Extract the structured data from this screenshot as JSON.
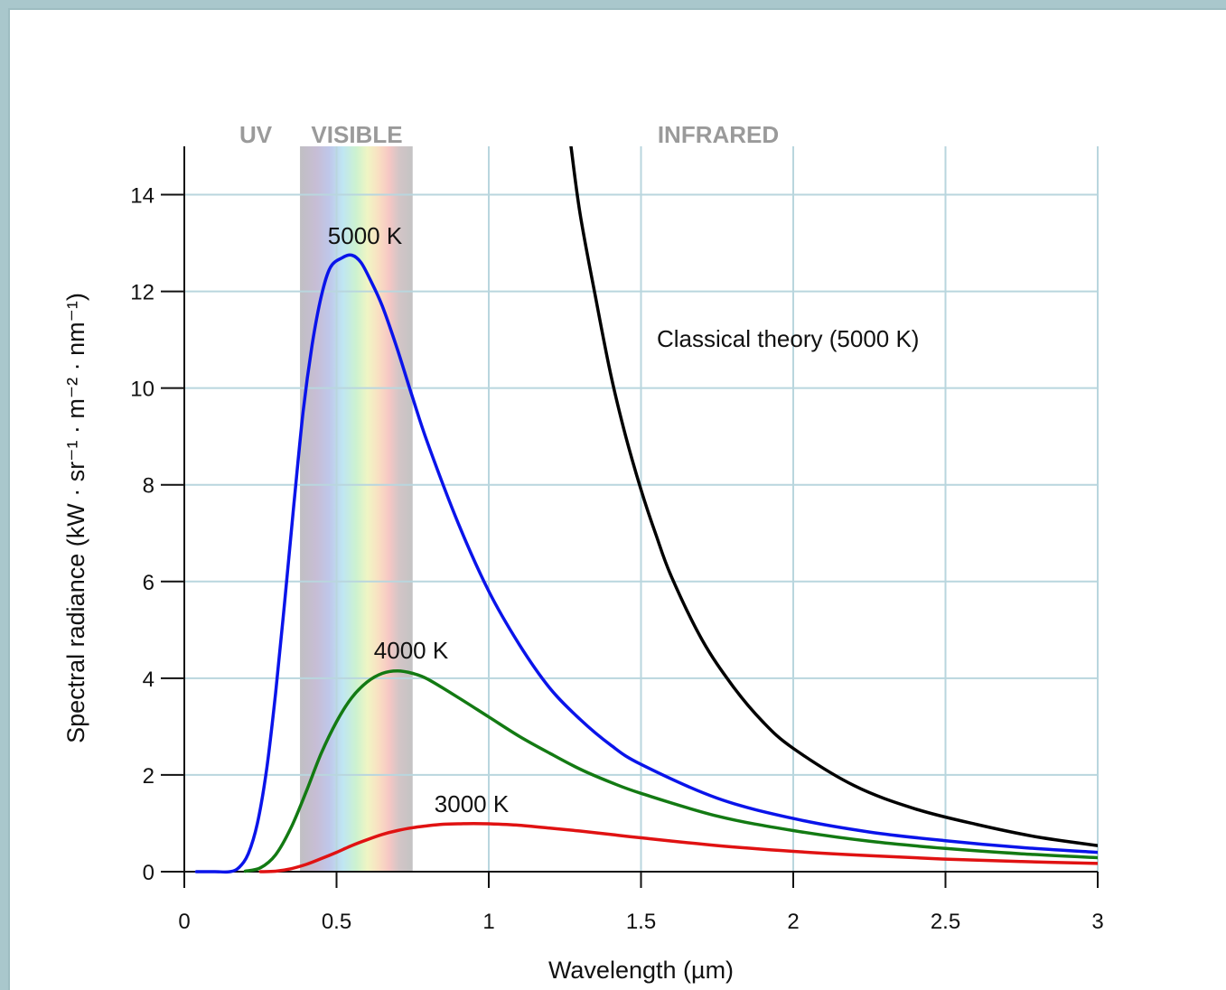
{
  "chart_data": {
    "type": "line",
    "xlabel": "Wavelength (µm)",
    "ylabel": "Spectral radiance (kW · sr⁻¹ · m⁻² · nm⁻¹)",
    "xlim": [
      0,
      3
    ],
    "ylim": [
      0,
      15
    ],
    "x_ticks": [
      "0",
      "0.5",
      "1",
      "1.5",
      "2",
      "2.5",
      "3"
    ],
    "y_ticks": [
      "0",
      "2",
      "4",
      "6",
      "8",
      "10",
      "12",
      "14"
    ],
    "grid": true,
    "regions": [
      {
        "label": "UV",
        "range": [
          0,
          0.38
        ]
      },
      {
        "label": "VISIBLE",
        "range": [
          0.38,
          0.75
        ]
      },
      {
        "label": "INFRARED",
        "range": [
          0.75,
          3
        ]
      }
    ],
    "series": [
      {
        "name": "5000 K",
        "color": "#0a14ea",
        "x": [
          0.04,
          0.1,
          0.15,
          0.18,
          0.21,
          0.24,
          0.27,
          0.3,
          0.33,
          0.36,
          0.39,
          0.42,
          0.45,
          0.48,
          0.52,
          0.55,
          0.58,
          0.61,
          0.65,
          0.7,
          0.75,
          0.8,
          0.9,
          1.0,
          1.1,
          1.2,
          1.3,
          1.4,
          1.5,
          1.75,
          2.0,
          2.25,
          2.5,
          2.75,
          3.0
        ],
        "y": [
          0,
          0,
          0,
          0.09,
          0.37,
          1.0,
          2.1,
          3.7,
          5.6,
          7.6,
          9.5,
          10.9,
          11.9,
          12.5,
          12.7,
          12.75,
          12.6,
          12.25,
          11.7,
          10.8,
          9.8,
          8.85,
          7.2,
          5.8,
          4.7,
          3.8,
          3.15,
          2.62,
          2.22,
          1.52,
          1.1,
          0.82,
          0.64,
          0.5,
          0.4
        ]
      },
      {
        "name": "4000 K",
        "color": "#137a13",
        "x": [
          0.2,
          0.25,
          0.3,
          0.35,
          0.4,
          0.45,
          0.5,
          0.55,
          0.6,
          0.65,
          0.7,
          0.75,
          0.8,
          0.9,
          1.0,
          1.1,
          1.2,
          1.3,
          1.4,
          1.5,
          1.75,
          2.0,
          2.25,
          2.5,
          2.75,
          3.0
        ],
        "y": [
          0.01,
          0.08,
          0.35,
          0.9,
          1.65,
          2.45,
          3.1,
          3.6,
          3.92,
          4.1,
          4.15,
          4.1,
          3.98,
          3.6,
          3.2,
          2.8,
          2.45,
          2.12,
          1.85,
          1.62,
          1.15,
          0.85,
          0.63,
          0.48,
          0.37,
          0.29
        ]
      },
      {
        "name": "3000 K",
        "color": "#e01212",
        "x": [
          0.25,
          0.3,
          0.35,
          0.4,
          0.45,
          0.5,
          0.55,
          0.6,
          0.65,
          0.7,
          0.75,
          0.8,
          0.85,
          0.9,
          0.95,
          1.0,
          1.1,
          1.2,
          1.3,
          1.4,
          1.5,
          1.75,
          2.0,
          2.25,
          2.5,
          2.75,
          3.0
        ],
        "y": [
          0,
          0.01,
          0.06,
          0.15,
          0.27,
          0.4,
          0.54,
          0.66,
          0.77,
          0.85,
          0.91,
          0.95,
          0.98,
          0.99,
          0.995,
          0.99,
          0.96,
          0.9,
          0.84,
          0.77,
          0.7,
          0.54,
          0.42,
          0.33,
          0.26,
          0.21,
          0.17
        ]
      },
      {
        "name": "Classical theory (5000 K)",
        "color": "#000000",
        "x": [
          1.27,
          1.3,
          1.35,
          1.4,
          1.45,
          1.5,
          1.55,
          1.6,
          1.7,
          1.8,
          1.9,
          2.0,
          2.2,
          2.4,
          2.6,
          2.8,
          3.0
        ],
        "y": [
          15,
          13.6,
          11.9,
          10.3,
          9.0,
          7.9,
          6.95,
          6.1,
          4.8,
          3.85,
          3.1,
          2.55,
          1.78,
          1.3,
          0.98,
          0.72,
          0.54
        ]
      }
    ]
  }
}
